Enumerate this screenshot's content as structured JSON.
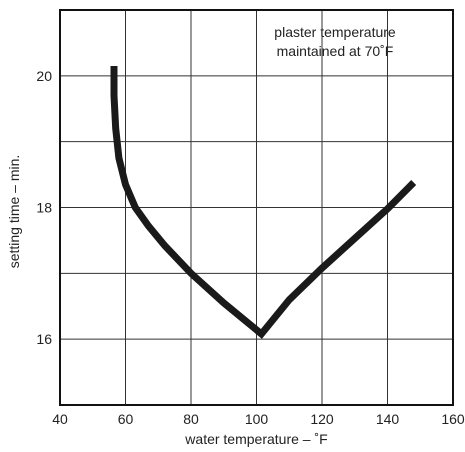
{
  "chart_data": {
    "type": "line",
    "xlabel": "water temperature – ˚F",
    "ylabel": "setting time – min.",
    "annotation_lines": [
      "plaster temperature",
      "maintained at 70˚F"
    ],
    "xlim": [
      40,
      160
    ],
    "ylim": [
      15,
      21
    ],
    "x_ticks": [
      40,
      60,
      80,
      100,
      120,
      140,
      160
    ],
    "x_tick_labels": [
      "40",
      "60",
      "80",
      "100",
      "120",
      "140",
      "160"
    ],
    "y_ticks": [
      16,
      18,
      20
    ],
    "y_tick_labels": [
      "16",
      "18",
      "20"
    ],
    "grid": true,
    "legend": "none",
    "series": [
      {
        "x": [
          56.5,
          56.5,
          57,
          58,
          60,
          63,
          67,
          72,
          80,
          90,
          101.5,
          110,
          120,
          130,
          140,
          148
        ],
        "y": [
          20.15,
          19.7,
          19.2,
          18.75,
          18.35,
          18.0,
          17.72,
          17.42,
          17.0,
          16.55,
          16.08,
          16.6,
          17.08,
          17.53,
          17.98,
          18.38
        ]
      }
    ],
    "colors": {
      "line": "#1a1a1a",
      "grid": "#333333",
      "axes": "#111111"
    }
  }
}
